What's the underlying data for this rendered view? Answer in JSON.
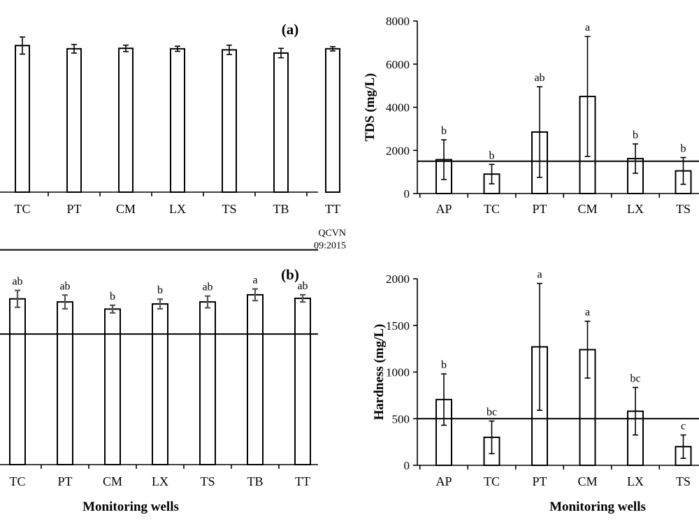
{
  "chart_data": [
    {
      "id": "top-left",
      "type": "bar",
      "panel_label": "(a)",
      "title": "",
      "ylabel": "",
      "xlabel": "",
      "ylim": [
        0,
        8
      ],
      "yticks_shown": false,
      "categories": [
        "TC",
        "PT",
        "CM",
        "LX",
        "TS",
        "TB",
        "TT"
      ],
      "values": [
        6.85,
        6.7,
        6.72,
        6.7,
        6.65,
        6.5,
        6.7
      ],
      "errors": [
        0.4,
        0.2,
        0.15,
        0.12,
        0.22,
        0.22,
        0.1
      ],
      "significance": [],
      "reference_lines": []
    },
    {
      "id": "top-right",
      "type": "bar",
      "title": "",
      "ylabel": "TDS (mg/L)",
      "xlabel": "",
      "ylim": [
        0,
        8000
      ],
      "yticks": [
        0,
        2000,
        4000,
        6000,
        8000
      ],
      "categories": [
        "AP",
        "TC",
        "PT",
        "CM",
        "LX",
        "TS"
      ],
      "values": [
        1570,
        900,
        2850,
        4500,
        1620,
        1050
      ],
      "errors": [
        920,
        450,
        2100,
        2780,
        680,
        620
      ],
      "significance": [
        "b",
        "b",
        "ab",
        "a",
        "b",
        "b"
      ],
      "reference_lines": [
        {
          "value": 1500,
          "label": ""
        }
      ]
    },
    {
      "id": "bottom-left",
      "type": "bar",
      "panel_label": "(b)",
      "title": "",
      "ylabel": "",
      "xlabel": "Monitoring wells",
      "ylim": [
        0,
        1000
      ],
      "yticks_shown": false,
      "categories": [
        "TC",
        "PT",
        "CM",
        "LX",
        "TS",
        "TB",
        "TT"
      ],
      "values": [
        650,
        638,
        610,
        630,
        638,
        666,
        652
      ],
      "errors": [
        33,
        27,
        15,
        19,
        23,
        23,
        14
      ],
      "significance": [
        "ab",
        "ab",
        "b",
        "b",
        "ab",
        "a",
        "ab"
      ],
      "reference_lines": [
        {
          "value": 842,
          "label": "QCVN 09:2015",
          "label_lines": [
            "QCVN",
            "09:2015"
          ]
        },
        {
          "value": 512,
          "label": ""
        }
      ]
    },
    {
      "id": "bottom-right",
      "type": "bar",
      "title": "",
      "ylabel": "Hardness (mg/L)",
      "xlabel": "Monitoring wells",
      "ylim": [
        0,
        2000
      ],
      "yticks": [
        0,
        500,
        1000,
        1500,
        2000
      ],
      "categories": [
        "AP",
        "TC",
        "PT",
        "CM",
        "LX",
        "TS"
      ],
      "values": [
        705,
        300,
        1270,
        1240,
        580,
        200
      ],
      "errors": [
        275,
        175,
        680,
        305,
        255,
        125
      ],
      "significance": [
        "b",
        "bc",
        "a",
        "a",
        "bc",
        "c"
      ],
      "reference_lines": [
        {
          "value": 500,
          "label": ""
        }
      ]
    }
  ]
}
